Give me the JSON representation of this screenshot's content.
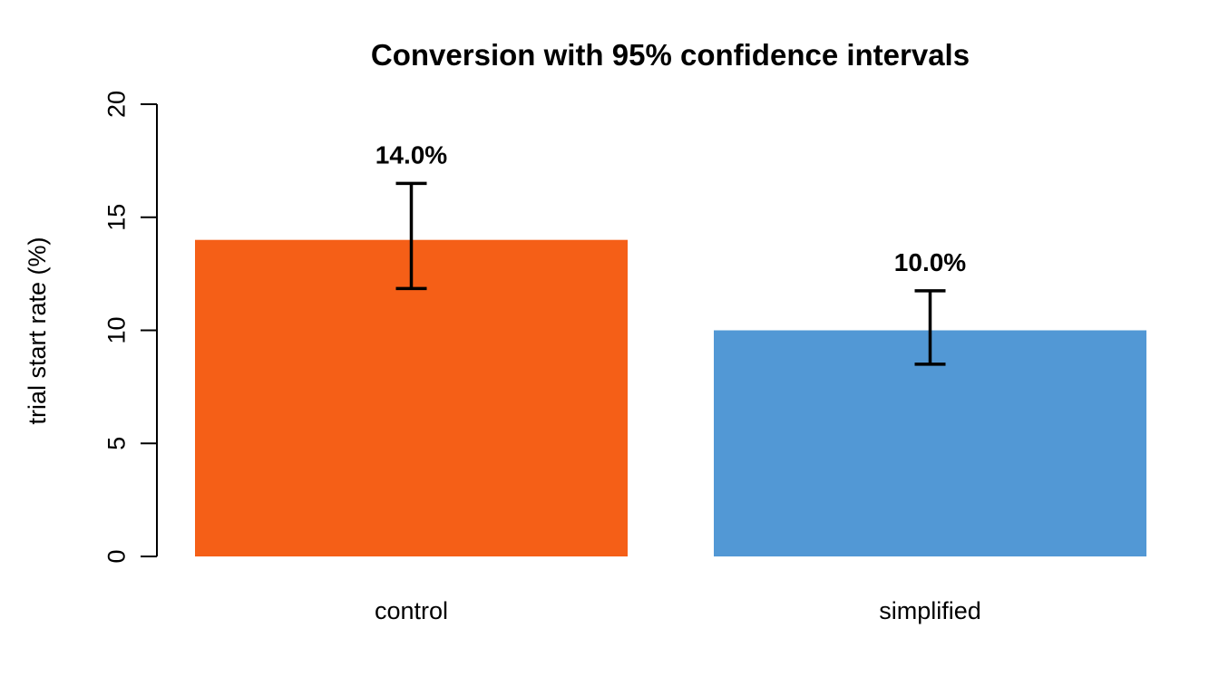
{
  "chart_data": {
    "type": "bar",
    "title": "Conversion with 95% confidence intervals",
    "xlabel": "",
    "ylabel": "trial start rate (%)",
    "ylim": [
      0,
      20
    ],
    "yticks": [
      0,
      5,
      10,
      15,
      20
    ],
    "ytick_labels": [
      "0",
      "5",
      "10",
      "15",
      "20"
    ],
    "categories": [
      "control",
      "simplified"
    ],
    "values": [
      14.0,
      10.0
    ],
    "ci_lower": [
      11.85,
      8.5
    ],
    "ci_upper": [
      16.5,
      11.75
    ],
    "data_labels": [
      "14.0%",
      "10.0%"
    ],
    "colors": [
      "#F55F17",
      "#5298D5"
    ],
    "grid": false,
    "legend": "none"
  }
}
